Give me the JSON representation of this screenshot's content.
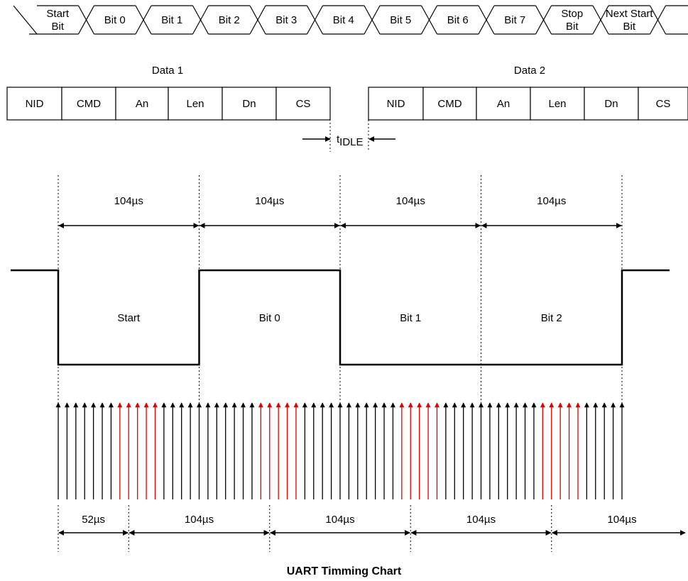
{
  "title": "UART Timming Chart",
  "frame_bits": [
    "Start Bit",
    "Bit 0",
    "Bit 1",
    "Bit 2",
    "Bit 3",
    "Bit 4",
    "Bit 5",
    "Bit 6",
    "Bit 7",
    "Stop Bit",
    "Next Start Bit"
  ],
  "frame_bits_lines": [
    [
      "Start",
      "Bit"
    ],
    [
      "Bit 0"
    ],
    [
      "Bit 1"
    ],
    [
      "Bit 2"
    ],
    [
      "Bit 3"
    ],
    [
      "Bit 4"
    ],
    [
      "Bit 5"
    ],
    [
      "Bit 6"
    ],
    [
      "Bit 7"
    ],
    [
      "Stop",
      "Bit"
    ],
    [
      "Next Start",
      "Bit"
    ]
  ],
  "packets": [
    {
      "label": "Data 1",
      "fields": [
        "NID",
        "CMD",
        "An",
        "Len",
        "Dn",
        "CS"
      ]
    },
    {
      "label": "Data 2",
      "fields": [
        "NID",
        "CMD",
        "An",
        "Len",
        "Dn",
        "CS"
      ]
    }
  ],
  "idle_gap": {
    "label_main": "t",
    "label_sub": "IDLE"
  },
  "bit_period_labels": [
    "104µs",
    "104µs",
    "104µs",
    "104µs"
  ],
  "waveform": {
    "bits": [
      {
        "label": "Start",
        "level": 0
      },
      {
        "label": "Bit 0",
        "level": 1
      },
      {
        "label": "Bit 1",
        "level": 0
      },
      {
        "label": "Bit 2",
        "level": 0
      }
    ],
    "idle_level": 1
  },
  "sampling": {
    "ticks_per_bit": 16,
    "sample_tick_range": [
      7,
      11
    ],
    "normal_color": "#000000",
    "sample_color": "#e00000"
  },
  "sample_interval_labels": [
    "52µs",
    "104µs",
    "104µs",
    "104µs",
    "104µs"
  ]
}
